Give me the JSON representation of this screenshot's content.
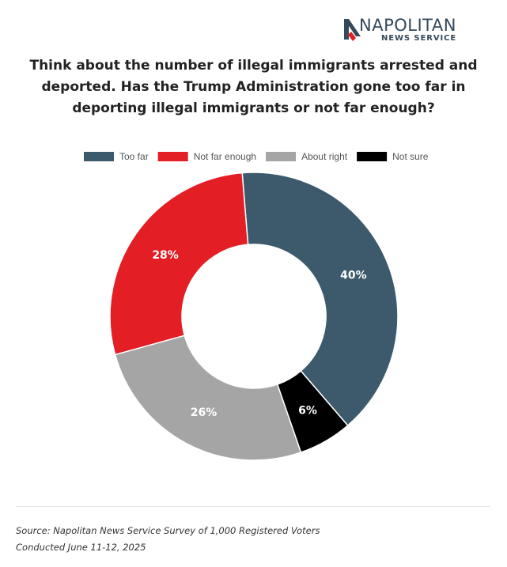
{
  "brand": {
    "name": "NAPOLITAN",
    "subtitle": "NEWS SERVICE"
  },
  "chart_data": {
    "type": "pie",
    "style": "donut",
    "title": "Think about the number of illegal immigrants arrested and deported. Has the Trump Administration gone too far in deporting illegal immigrants or not far enough?",
    "legend_position": "top",
    "slices": [
      {
        "label": "Too far",
        "value": 40,
        "display": "40%",
        "color": "#3d5a6c"
      },
      {
        "label": "Not far enough",
        "value": 28,
        "display": "28%",
        "color": "#e31e25"
      },
      {
        "label": "About right",
        "value": 26,
        "display": "26%",
        "color": "#a5a5a5"
      },
      {
        "label": "Not sure",
        "value": 6,
        "display": "6%",
        "color": "#000000"
      }
    ]
  },
  "footer": {
    "source": "Source: Napolitan News Service Survey of 1,000 Registered Voters",
    "conducted": "Conducted June 11-12, 2025"
  }
}
